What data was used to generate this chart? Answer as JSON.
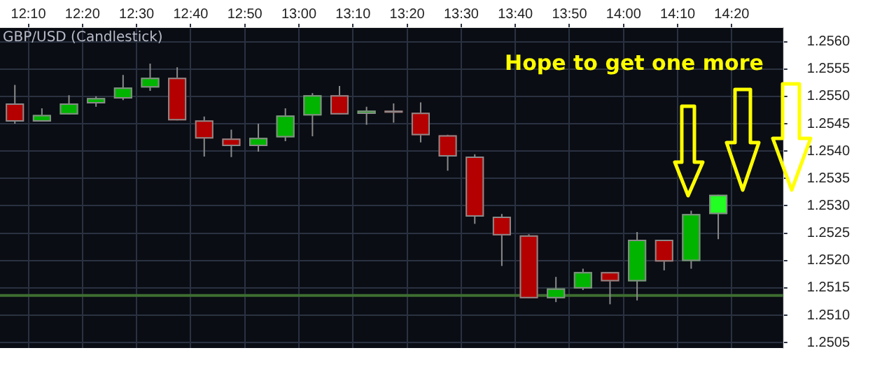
{
  "chart_data": {
    "type": "candlestick",
    "title": "GBP/USD (Candlestick)",
    "annotations": [
      "Hope to get one more"
    ],
    "x": [
      12.125,
      12.2083,
      12.2917,
      12.375,
      12.4583,
      12.5417,
      12.625,
      12.7083,
      12.7917,
      12.875,
      12.9583,
      13.0417,
      13.125,
      13.2083,
      13.2917,
      13.375,
      13.4583,
      13.5417,
      13.625,
      13.7083,
      13.7917,
      13.875,
      13.9583,
      14.0417,
      14.125,
      14.2083,
      14.2917
    ],
    "ohlc": [
      [
        1.25487,
        1.25521,
        1.2545,
        1.25454
      ],
      [
        1.25454,
        1.25478,
        1.25454,
        1.25466
      ],
      [
        1.25467,
        1.25502,
        1.25467,
        1.25487
      ],
      [
        1.25487,
        1.255,
        1.25481,
        1.25497
      ],
      [
        1.25496,
        1.25539,
        1.25493,
        1.25516
      ],
      [
        1.25516,
        1.2556,
        1.2551,
        1.25534
      ],
      [
        1.25534,
        1.25553,
        1.25456,
        1.25456
      ],
      [
        1.25456,
        1.25463,
        1.2539,
        1.25423
      ],
      [
        1.25423,
        1.25439,
        1.25389,
        1.25409
      ],
      [
        1.25409,
        1.2545,
        1.25399,
        1.25424
      ],
      [
        1.25425,
        1.25478,
        1.25418,
        1.25465
      ],
      [
        1.25465,
        1.25506,
        1.25427,
        1.25502
      ],
      [
        1.25502,
        1.25519,
        1.25467,
        1.25467
      ],
      [
        1.25468,
        1.25481,
        1.25448,
        1.25474
      ],
      [
        1.25474,
        1.25487,
        1.25452,
        1.2547
      ],
      [
        1.2547,
        1.25489,
        1.25416,
        1.25429
      ],
      [
        1.25429,
        1.2543,
        1.25364,
        1.2539
      ],
      [
        1.2539,
        1.25394,
        1.25267,
        1.2528
      ],
      [
        1.2528,
        1.25285,
        1.2519,
        1.25246
      ],
      [
        1.25246,
        1.25248,
        1.25131,
        1.25131
      ],
      [
        1.25131,
        1.2517,
        1.25124,
        1.25149
      ],
      [
        1.25149,
        1.25185,
        1.25146,
        1.25179
      ],
      [
        1.25179,
        1.25179,
        1.2512,
        1.25162
      ],
      [
        1.25162,
        1.25252,
        1.25127,
        1.25238
      ],
      [
        1.25238,
        1.25238,
        1.25182,
        1.25198
      ],
      [
        1.25199,
        1.25291,
        1.25185,
        1.25285
      ],
      [
        1.25285,
        1.2532,
        1.25239,
        1.2532
      ]
    ],
    "colors": [
      "#b40000",
      "#00b400",
      "#00b400",
      "#00b400",
      "#00b400",
      "#00b400",
      "#b40000",
      "#b40000",
      "#b40000",
      "#00b400",
      "#00b400",
      "#00b400",
      "#b40000",
      "#00b400",
      "#b40000",
      "#b40000",
      "#b40000",
      "#b40000",
      "#b40000",
      "#b40000",
      "#00b400",
      "#00b400",
      "#b40000",
      "#00b400",
      "#b40000",
      "#00b400",
      "#22ff22"
    ],
    "xlim": [
      12.0792,
      14.4917
    ],
    "xticks": [
      {
        "value": 12.1667,
        "label": "12:10"
      },
      {
        "value": 12.3333,
        "label": "12:20"
      },
      {
        "value": 12.5,
        "label": "12:30"
      },
      {
        "value": 12.6667,
        "label": "12:40"
      },
      {
        "value": 12.8333,
        "label": "12:50"
      },
      {
        "value": 13,
        "label": "13:00"
      },
      {
        "value": 13.1667,
        "label": "13:10"
      },
      {
        "value": 13.3333,
        "label": "13:20"
      },
      {
        "value": 13.5,
        "label": "13:30"
      },
      {
        "value": 13.6667,
        "label": "13:40"
      },
      {
        "value": 13.8333,
        "label": "13:50"
      },
      {
        "value": 14,
        "label": "14:00"
      },
      {
        "value": 14.1667,
        "label": "14:10"
      },
      {
        "value": 14.3333,
        "label": "14:20"
      }
    ],
    "ylim": [
      1.2504,
      1.25625
    ],
    "yticks": [
      {
        "value": 1.2505,
        "label": "1.2505"
      },
      {
        "value": 1.251,
        "label": "1.2510"
      },
      {
        "value": 1.2515,
        "label": "1.2515"
      },
      {
        "value": 1.252,
        "label": "1.2520"
      },
      {
        "value": 1.2525,
        "label": "1.2525"
      },
      {
        "value": 1.253,
        "label": "1.2530"
      },
      {
        "value": 1.2535,
        "label": "1.2535"
      },
      {
        "value": 1.254,
        "label": "1.2540"
      },
      {
        "value": 1.2545,
        "label": "1.2545"
      },
      {
        "value": 1.255,
        "label": "1.2550"
      },
      {
        "value": 1.2555,
        "label": "1.2555"
      },
      {
        "value": 1.256,
        "label": "1.2560"
      }
    ],
    "ref_lines": [
      {
        "axis": "y",
        "value": 1.25136,
        "color": "#3d6e30"
      }
    ],
    "grid": true,
    "legend": false
  }
}
